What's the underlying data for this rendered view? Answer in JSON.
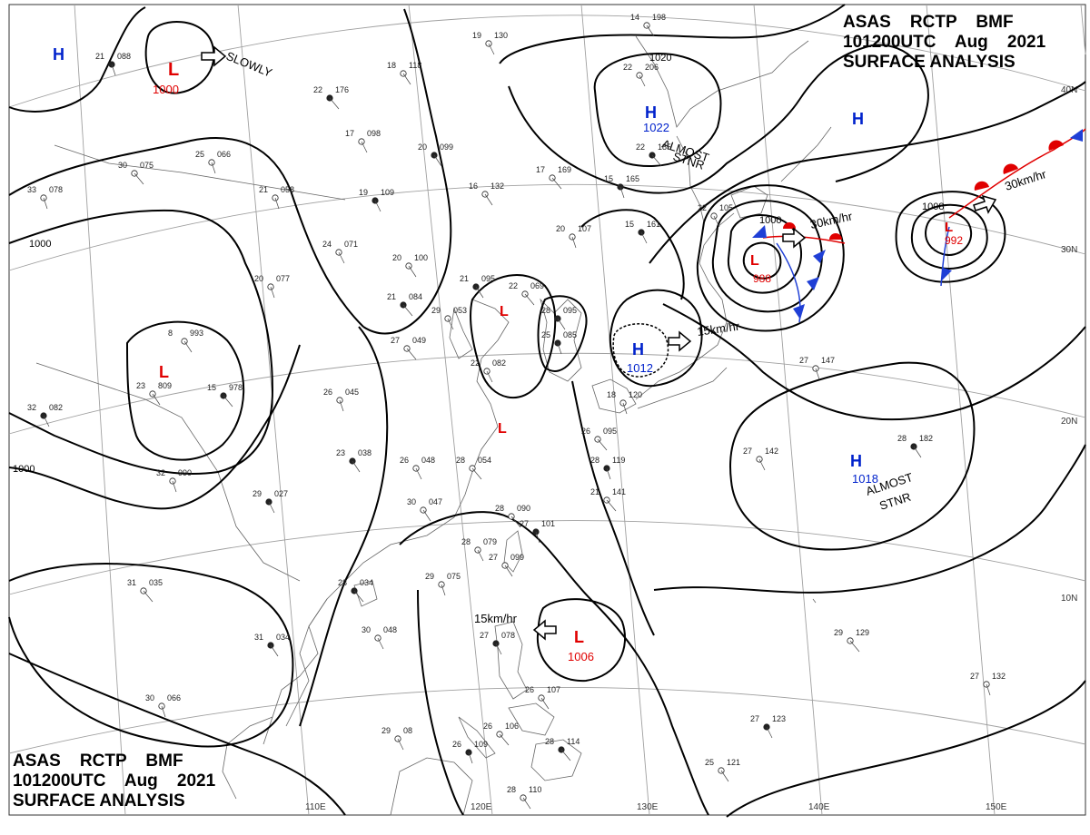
{
  "header": {
    "line1": "ASAS    RCTP    BMF",
    "line2": "101200UTC    Aug    2021",
    "line3": "SURFACE ANALYSIS"
  },
  "longitudes": [
    "110E",
    "120E",
    "130E",
    "140E",
    "150E"
  ],
  "latitudes": [
    "40N",
    "30N",
    "20N",
    "10N"
  ],
  "isobar_labels": [
    "1000",
    "1000",
    "1020",
    "1000",
    "1008"
  ],
  "pressure_systems": [
    {
      "type": "L",
      "value": "1000",
      "motion": "SLOWLY"
    },
    {
      "type": "H",
      "value": "1022",
      "motion": "ALMOST STNR"
    },
    {
      "type": "L",
      "value": "988",
      "motion": "30km/hr"
    },
    {
      "type": "L",
      "value": "992",
      "motion": "30km/hr"
    },
    {
      "type": "H",
      "value": "1012",
      "motion": "15km/hr"
    },
    {
      "type": "H",
      "value": "1018",
      "motion": "ALMOST STNR"
    },
    {
      "type": "L",
      "value": "1006",
      "motion": "15km/hr"
    },
    {
      "type": "H",
      "value": ""
    },
    {
      "type": "H",
      "value": ""
    },
    {
      "type": "L",
      "value": ""
    },
    {
      "type": "L",
      "value": ""
    },
    {
      "type": "L",
      "value": ""
    }
  ],
  "stations": [
    {
      "t": "21",
      "p": "088"
    },
    {
      "t": "19",
      "p": "130"
    },
    {
      "t": "18",
      "p": "118"
    },
    {
      "t": "22",
      "p": "176"
    },
    {
      "t": "25",
      "p": "066"
    },
    {
      "t": "17",
      "p": "098"
    },
    {
      "t": "20",
      "p": "099"
    },
    {
      "t": "30",
      "p": "075"
    },
    {
      "t": "21",
      "p": "058"
    },
    {
      "t": "19",
      "p": "109"
    },
    {
      "t": "16",
      "p": "132"
    },
    {
      "t": "17",
      "p": "169"
    },
    {
      "t": "15",
      "p": "165"
    },
    {
      "t": "24",
      "p": "071"
    },
    {
      "t": "20",
      "p": "100"
    },
    {
      "t": "21",
      "p": "084"
    },
    {
      "t": "20",
      "p": "077"
    },
    {
      "t": "29",
      "p": "053"
    },
    {
      "t": "21",
      "p": "095"
    },
    {
      "t": "22",
      "p": "069"
    },
    {
      "t": "20",
      "p": "107"
    },
    {
      "t": "15",
      "p": "161"
    },
    {
      "t": "8",
      "p": "993"
    },
    {
      "t": "27",
      "p": "049"
    },
    {
      "t": "25",
      "p": "085"
    },
    {
      "t": "22",
      "p": "082"
    },
    {
      "t": "23",
      "p": "809"
    },
    {
      "t": "15",
      "p": "978"
    },
    {
      "t": "26",
      "p": "045"
    },
    {
      "t": "26",
      "p": "048"
    },
    {
      "t": "23",
      "p": "038"
    },
    {
      "t": "28",
      "p": "054"
    },
    {
      "t": "32",
      "p": "990"
    },
    {
      "t": "29",
      "p": "027"
    },
    {
      "t": "30",
      "p": "047"
    },
    {
      "t": "28",
      "p": "090"
    },
    {
      "t": "27",
      "p": "101"
    },
    {
      "t": "28",
      "p": "079"
    },
    {
      "t": "27",
      "p": "099"
    },
    {
      "t": "28",
      "p": "034"
    },
    {
      "t": "29",
      "p": "075"
    },
    {
      "t": "30",
      "p": "048"
    },
    {
      "t": "31",
      "p": "034"
    },
    {
      "t": "31",
      "p": "035"
    },
    {
      "t": "30",
      "p": "066"
    },
    {
      "t": "27",
      "p": "078"
    },
    {
      "t": "26",
      "p": "107"
    },
    {
      "t": "26",
      "p": "106"
    },
    {
      "t": "26",
      "p": "109"
    },
    {
      "t": "29",
      "p": "08"
    },
    {
      "t": "28",
      "p": "110"
    },
    {
      "t": "28",
      "p": "114"
    },
    {
      "t": "27",
      "p": "147"
    },
    {
      "t": "27",
      "p": "142"
    },
    {
      "t": "28",
      "p": "182"
    },
    {
      "t": "29",
      "p": "129"
    },
    {
      "t": "27",
      "p": "132"
    },
    {
      "t": "27",
      "p": "123"
    },
    {
      "t": "25",
      "p": "121"
    },
    {
      "t": "21",
      "p": "141"
    },
    {
      "t": "28",
      "p": "119"
    },
    {
      "t": "22",
      "p": "206"
    },
    {
      "t": "14",
      "p": "198"
    },
    {
      "t": "22",
      "p": "185"
    },
    {
      "t": "18",
      "p": "120"
    },
    {
      "t": "22",
      "p": "105"
    },
    {
      "t": "28",
      "p": "095"
    },
    {
      "t": "26",
      "p": "095"
    },
    {
      "t": "33",
      "p": "078"
    },
    {
      "t": "32",
      "p": "082"
    }
  ],
  "colors": {
    "low": "#e00000",
    "high": "#0022cc",
    "cold_front": "#1f3fd6",
    "warm_front": "#e00000",
    "isobar": "#000000",
    "grid": "#9a9a9a",
    "coast": "#555555"
  }
}
